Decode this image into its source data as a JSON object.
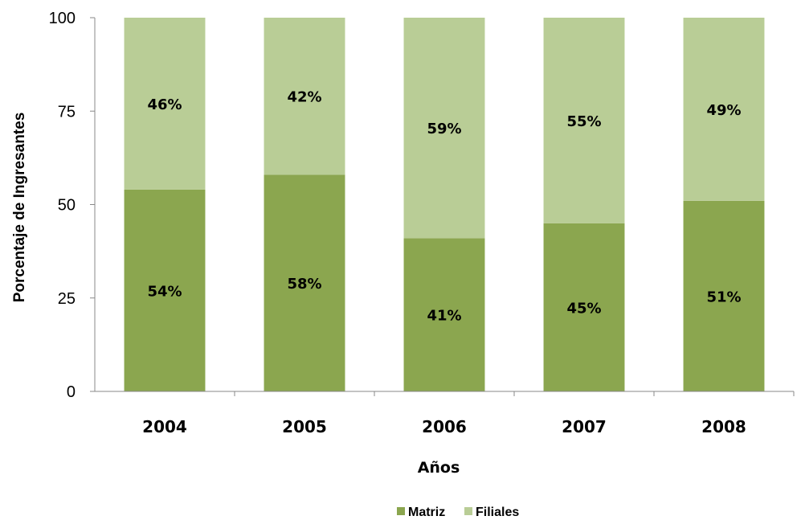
{
  "chart_data": {
    "type": "bar",
    "stacked": true,
    "categories": [
      "2004",
      "2005",
      "2006",
      "2007",
      "2008"
    ],
    "series": [
      {
        "name": "Matriz",
        "values": [
          54,
          58,
          41,
          45,
          51
        ],
        "labels": [
          "54%",
          "58%",
          "41%",
          "45%",
          "51%"
        ],
        "color": "#8ba64f"
      },
      {
        "name": "Filiales",
        "values": [
          46,
          42,
          59,
          55,
          49
        ],
        "labels": [
          "46%",
          "42%",
          "59%",
          "55%",
          "49%"
        ],
        "color": "#b9cd96"
      }
    ],
    "xlabel": "Años",
    "ylabel": "Porcentaje de Ingresantes",
    "ylim": [
      0,
      100
    ],
    "yticks": [
      0,
      25,
      50,
      75,
      100
    ],
    "grid": false,
    "legend_position": "bottom"
  }
}
